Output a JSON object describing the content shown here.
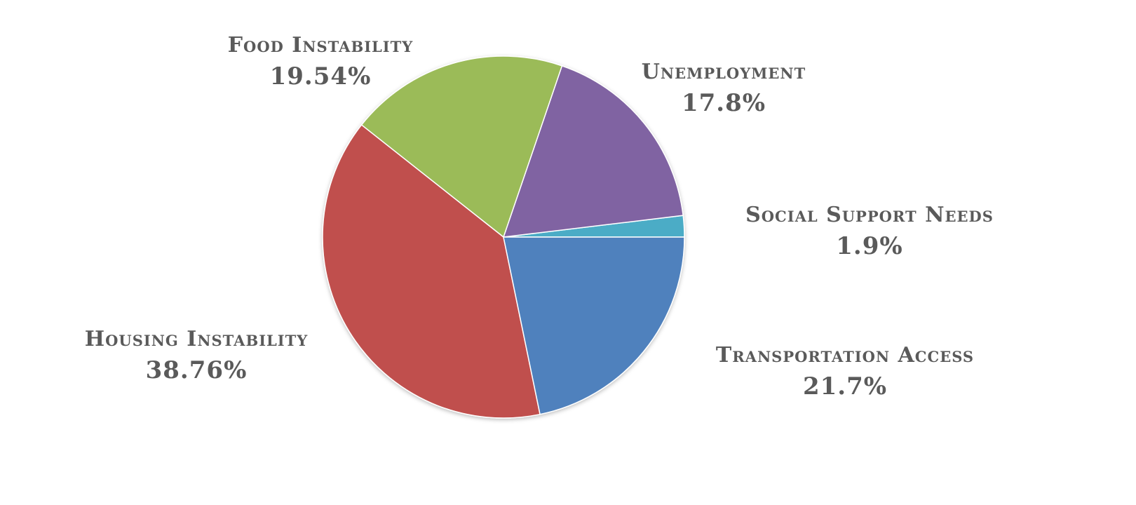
{
  "chart_data": {
    "type": "pie",
    "title": "",
    "slices": [
      {
        "label": "Social Support Needs",
        "value": 1.9,
        "value_label": "1.9%",
        "color": "#4BACC6"
      },
      {
        "label": "Unemployment",
        "value": 17.8,
        "value_label": "17.8%",
        "color": "#8064A2"
      },
      {
        "label": "Food Instability",
        "value": 19.54,
        "value_label": "19.54%",
        "color": "#9BBB59"
      },
      {
        "label": "Housing Instability",
        "value": 38.76,
        "value_label": "38.76%",
        "color": "#C0504D"
      },
      {
        "label": "Transportation Access",
        "value": 21.7,
        "value_label": "21.7%",
        "color": "#4F81BD"
      }
    ],
    "direction": "counterclockwise",
    "start": "3 o'clock",
    "legend": "none"
  }
}
